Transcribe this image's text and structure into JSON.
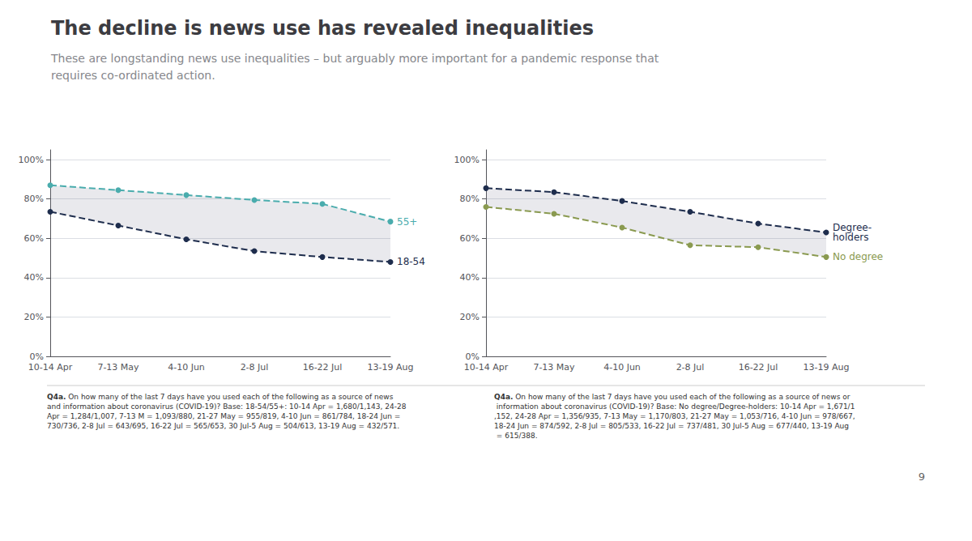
{
  "chart_data": [
    {
      "type": "line",
      "title": "The decline is news use has revealed inequalities",
      "subtitle": "These are longstanding news use inequalities – but arguably more important for a pandemic response that\nrequires co-ordinated action.",
      "categories": [
        "10-14 Apr",
        "7-13 May",
        "4-10 Jun",
        "2-8 Jul",
        "16-22 Jul",
        "13-19 Aug"
      ],
      "series": [
        {
          "name": "55+",
          "color": "#4aacad",
          "marker": "circle",
          "line_style": "dashed",
          "values": [
            0.87,
            0.845,
            0.82,
            0.795,
            0.775,
            0.685
          ]
        },
        {
          "name": "18-54",
          "color": "#1e2d4d",
          "marker": "circle",
          "line_style": "dashed",
          "values": [
            0.735,
            0.665,
            0.595,
            0.535,
            0.505,
            0.48
          ]
        }
      ],
      "ylim": [
        0,
        1.05
      ],
      "yticks": [
        {
          "value": 0,
          "label": "0%"
        },
        {
          "value": 0.2,
          "label": "20%"
        },
        {
          "value": 0.4,
          "label": "40%"
        },
        {
          "value": 0.6,
          "label": "60%"
        },
        {
          "value": 0.8,
          "label": "80%"
        },
        {
          "value": 1.0,
          "label": "100%"
        }
      ],
      "grid": true,
      "annotations": [
        "Q4a.",
        " On how many of the last 7 days have you used each of the following as a source of news and information about coronavirus (COVID-19)? Base: 18-54/55+: 10-14 Apr = 1,680/1,143, 24-28 Apr = 1,284/1,007, 7-13 M = 1,093/880, 21-27 May = 955/819, 4-10 Jun = 861/784, 18-24 Jun = 730/736, 2-8 Jul = 643/695, 16-22 Jul = 565/653, 30 Jul-5 Aug = 504/613, 13-19 Aug = 432/571."
      ]
    },
    {
      "type": "line",
      "categories": [
        "10-14 Apr",
        "7-13 May",
        "4-10 Jun",
        "2-8 Jul",
        "16-22 Jul",
        "13-19 Aug"
      ],
      "series": [
        {
          "name": "Degree-\nholders",
          "color": "#1e2d4d",
          "marker": "circle",
          "line_style": "dashed",
          "values": [
            0.855,
            0.835,
            0.79,
            0.735,
            0.675,
            0.63
          ]
        },
        {
          "name": "No degree",
          "color": "#8a9a50",
          "marker": "circle",
          "line_style": "dashed",
          "values": [
            0.76,
            0.725,
            0.655,
            0.565,
            0.555,
            0.505
          ]
        }
      ],
      "ylim": [
        0,
        1.05
      ],
      "yticks": [
        {
          "value": 0,
          "label": "0%"
        },
        {
          "value": 0.2,
          "label": "20%"
        },
        {
          "value": 0.4,
          "label": "40%"
        },
        {
          "value": 0.6,
          "label": "60%"
        },
        {
          "value": 0.8,
          "label": "80%"
        },
        {
          "value": 1.0,
          "label": "100%"
        }
      ],
      "grid": true,
      "annotations": [
        "Q4a.",
        " On how many of the last 7 days have you used each of the following as a source of news or information about coronavirus (COVID-19)? Base: No degree/Degree-holders: 10-14 Apr = 1,671/1,152, 24-28 Apr = 1,356/935, 7-13 May = 1,170/803, 21-27 May = 1,053/716, 4-10 Jun = 978/667, 18-24 Jun = 874/592, 2-8 Jul = 805/533, 16-22 Jul = 737/481, 30 Jul-5 Aug = 677/440, 13-19 Aug = 615/388.",
        "9"
      ]
    }
  ]
}
